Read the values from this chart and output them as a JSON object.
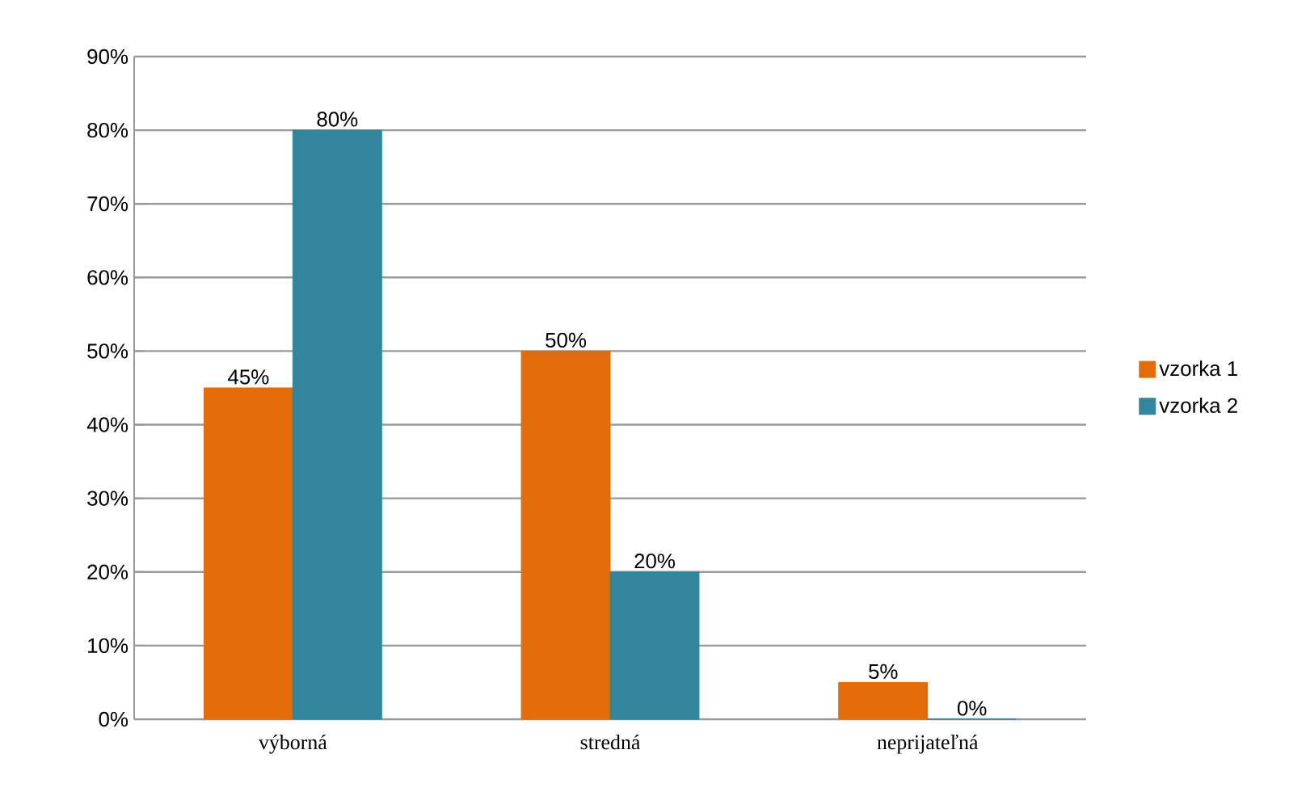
{
  "chart_data": {
    "type": "bar",
    "categories": [
      "výborná",
      "stredná",
      "neprijateľná"
    ],
    "series": [
      {
        "name": "vzorka 1",
        "color": "#e36c0a",
        "values": [
          45,
          50,
          5
        ],
        "value_labels": [
          "45%",
          "50%",
          "5%"
        ]
      },
      {
        "name": "vzorka 2",
        "color": "#31859c",
        "values": [
          80,
          20,
          0
        ],
        "value_labels": [
          "80%",
          "20%",
          "0%"
        ]
      }
    ],
    "ylim": [
      0,
      90
    ],
    "yticks": [
      {
        "value": 0,
        "label": "0%"
      },
      {
        "value": 10,
        "label": "10%"
      },
      {
        "value": 20,
        "label": "20%"
      },
      {
        "value": 30,
        "label": "30%"
      },
      {
        "value": 40,
        "label": "40%"
      },
      {
        "value": 50,
        "label": "50%"
      },
      {
        "value": 60,
        "label": "60%"
      },
      {
        "value": 70,
        "label": "70%"
      },
      {
        "value": 80,
        "label": "80%"
      },
      {
        "value": 90,
        "label": "90%"
      }
    ],
    "grid": "y",
    "legend": "right"
  }
}
